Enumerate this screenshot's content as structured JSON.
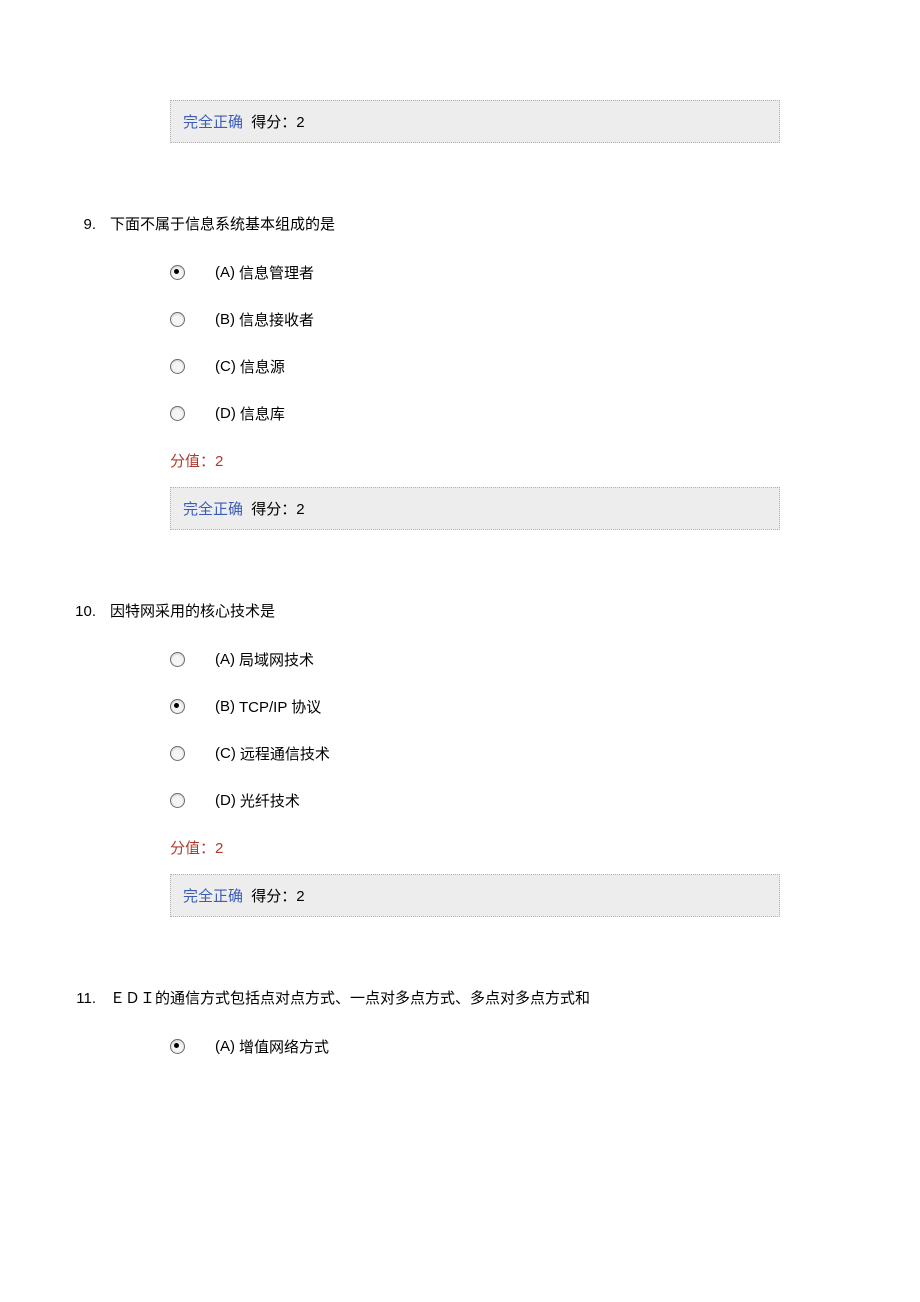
{
  "colors": {
    "feedback_bg": "#ededed",
    "feedback_border": "#b0b0b0",
    "status_color": "#3b5cb8",
    "score_label_color": "#b13a2e",
    "text_color": "#000000",
    "page_bg": "#ffffff"
  },
  "feedback_intro": {
    "status": "完全正确",
    "score_text": "得分：2"
  },
  "questions": [
    {
      "number": "9.",
      "text": "下面不属于信息系统基本组成的是",
      "options": [
        {
          "label": "(A)",
          "text": "信息管理者",
          "selected": true
        },
        {
          "label": "(B)",
          "text": "信息接收者",
          "selected": false
        },
        {
          "label": "(C)",
          "text": "信息源",
          "selected": false
        },
        {
          "label": "(D)",
          "text": "信息库",
          "selected": false
        }
      ],
      "score_label": "分值：2",
      "feedback": {
        "status": "完全正确",
        "score_text": "得分：2"
      }
    },
    {
      "number": "10.",
      "text": "因特网采用的核心技术是",
      "options": [
        {
          "label": "(A)",
          "text": "局域网技术",
          "selected": false
        },
        {
          "label": "(B)",
          "text": "TCP/IP 协议",
          "selected": true
        },
        {
          "label": "(C)",
          "text": "远程通信技术",
          "selected": false
        },
        {
          "label": "(D)",
          "text": "光纤技术",
          "selected": false
        }
      ],
      "score_label": "分值：2",
      "feedback": {
        "status": "完全正确",
        "score_text": "得分：2"
      }
    },
    {
      "number": "11.",
      "text": "ＥＤＩ的通信方式包括点对点方式、一点对多点方式、多点对多点方式和",
      "options": [
        {
          "label": "(A)",
          "text": "增值网络方式",
          "selected": true
        }
      ],
      "score_label": null,
      "feedback": null
    }
  ]
}
